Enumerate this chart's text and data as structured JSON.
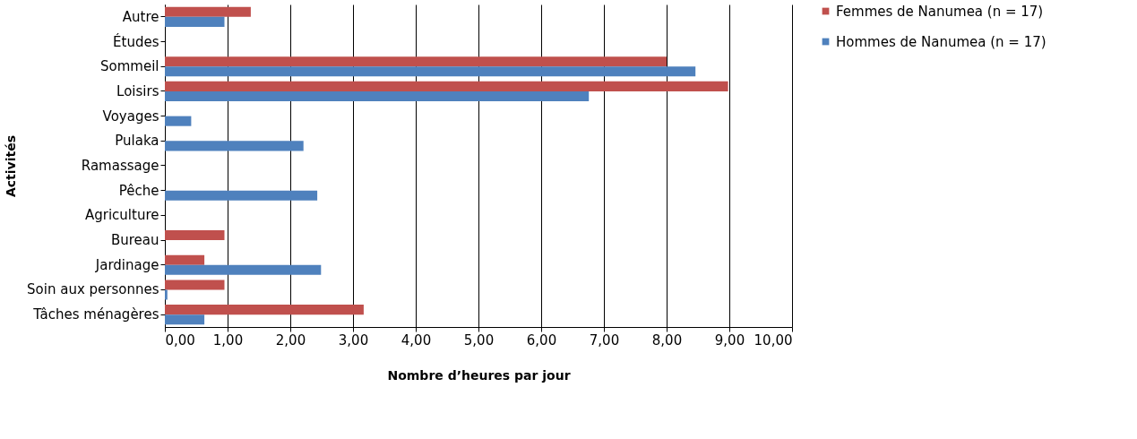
{
  "chart_data": {
    "type": "bar",
    "orientation": "horizontal",
    "xlabel": "Nombre d’heures par jour",
    "ylabel": "Activités",
    "categories": [
      "Autre",
      "Études",
      "Sommeil",
      "Loisirs",
      "Voyages",
      "Pulaka",
      "Ramassage",
      "Pêche",
      "Agriculture",
      "Bureau",
      "Jardinage",
      "Soin aux personnes",
      "Tâches ménagères"
    ],
    "series": [
      {
        "name": "Femmes de Nanumea (n = 17)",
        "color": "#c0504d",
        "values": [
          1.37,
          null,
          8.0,
          8.98,
          null,
          null,
          null,
          null,
          null,
          0.95,
          0.63,
          0.95,
          3.17
        ]
      },
      {
        "name": "Hommes de Nanumea (n = 17)",
        "color": "#4f81bd",
        "values": [
          0.95,
          null,
          8.46,
          6.76,
          0.42,
          2.21,
          null,
          2.43,
          null,
          null,
          2.49,
          0.04,
          0.63
        ]
      }
    ],
    "xlim": [
      0,
      10
    ],
    "xticks": [
      {
        "value": 0,
        "label": "0,00"
      },
      {
        "value": 1,
        "label": "1,00"
      },
      {
        "value": 2,
        "label": "2,00"
      },
      {
        "value": 3,
        "label": "3,00"
      },
      {
        "value": 4,
        "label": "4,00"
      },
      {
        "value": 5,
        "label": "5,00"
      },
      {
        "value": 6,
        "label": "6,00"
      },
      {
        "value": 7,
        "label": "7,00"
      },
      {
        "value": 8,
        "label": "8,00"
      },
      {
        "value": 9,
        "label": "9,00"
      },
      {
        "value": 10,
        "label": "10,00"
      }
    ],
    "grid": "x",
    "legend": "right"
  }
}
